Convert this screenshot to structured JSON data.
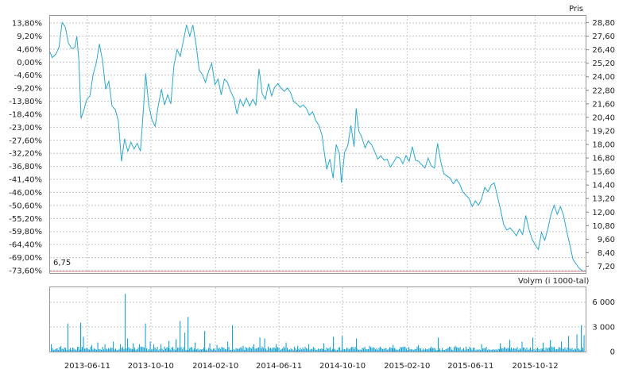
{
  "chart_data": [
    {
      "type": "line",
      "title": "",
      "right_axis_label": "Pris",
      "left_ticks": [
        "13,80%",
        "9,20%",
        "4,60%",
        "0,00%",
        "-4,60%",
        "-9,20%",
        "-13,80%",
        "-18,40%",
        "-23,00%",
        "-27,60%",
        "-32,20%",
        "-36,80%",
        "-41,40%",
        "-46,00%",
        "-50,60%",
        "-55,20%",
        "-59,80%",
        "-64,40%",
        "-69,00%",
        "-73,60%"
      ],
      "right_ticks": [
        "28,80",
        "27,60",
        "26,40",
        "25,20",
        "24,00",
        "22,80",
        "21,60",
        "20,40",
        "19,20",
        "18,00",
        "16,80",
        "15,60",
        "14,40",
        "13,20",
        "12,00",
        "10,80",
        "9,60",
        "8,40",
        "7,20"
      ],
      "left_range": [
        -73.6,
        13.8
      ],
      "right_range": [
        6.6,
        29.4
      ],
      "last_price_label": "6,75",
      "grid": true,
      "series": [
        {
          "color": "#2aa8cf",
          "points": [
            [
              "2013-04-01",
              26.2
            ],
            [
              "2013-04-05",
              25.7
            ],
            [
              "2013-04-12",
              26.0
            ],
            [
              "2013-04-18",
              26.6
            ],
            [
              "2013-04-24",
              28.8
            ],
            [
              "2013-04-30",
              28.4
            ],
            [
              "2013-05-06",
              27.0
            ],
            [
              "2013-05-12",
              26.5
            ],
            [
              "2013-05-18",
              26.6
            ],
            [
              "2013-05-22",
              27.6
            ],
            [
              "2013-05-26",
              25.4
            ],
            [
              "2013-05-30",
              20.3
            ],
            [
              "2013-06-04",
              21.0
            ],
            [
              "2013-06-10",
              22.0
            ],
            [
              "2013-06-16",
              22.3
            ],
            [
              "2013-06-22",
              24.2
            ],
            [
              "2013-06-28",
              25.2
            ],
            [
              "2013-07-04",
              26.9
            ],
            [
              "2013-07-10",
              25.4
            ],
            [
              "2013-07-16",
              22.9
            ],
            [
              "2013-07-22",
              23.6
            ],
            [
              "2013-07-28",
              21.4
            ],
            [
              "2013-08-03",
              21.1
            ],
            [
              "2013-08-09",
              20.1
            ],
            [
              "2013-08-15",
              16.5
            ],
            [
              "2013-08-21",
              18.5
            ],
            [
              "2013-08-27",
              17.4
            ],
            [
              "2013-09-02",
              18.2
            ],
            [
              "2013-09-08",
              17.6
            ],
            [
              "2013-09-14",
              18.1
            ],
            [
              "2013-09-20",
              17.4
            ],
            [
              "2013-09-26",
              21.2
            ],
            [
              "2013-09-30",
              24.3
            ],
            [
              "2013-10-06",
              21.5
            ],
            [
              "2013-10-12",
              20.2
            ],
            [
              "2013-10-18",
              19.6
            ],
            [
              "2013-10-24",
              21.4
            ],
            [
              "2013-10-30",
              22.9
            ],
            [
              "2013-11-05",
              21.5
            ],
            [
              "2013-11-11",
              22.4
            ],
            [
              "2013-11-17",
              21.6
            ],
            [
              "2013-11-23",
              25.0
            ],
            [
              "2013-11-29",
              26.4
            ],
            [
              "2013-12-05",
              25.8
            ],
            [
              "2013-12-11",
              27.2
            ],
            [
              "2013-12-17",
              28.6
            ],
            [
              "2013-12-23",
              27.6
            ],
            [
              "2013-12-29",
              28.6
            ],
            [
              "2014-01-04",
              26.9
            ],
            [
              "2014-01-10",
              24.6
            ],
            [
              "2014-01-16",
              24.2
            ],
            [
              "2014-01-22",
              23.5
            ],
            [
              "2014-01-28",
              24.5
            ],
            [
              "2014-02-03",
              25.2
            ],
            [
              "2014-02-09",
              23.3
            ],
            [
              "2014-02-15",
              23.8
            ],
            [
              "2014-02-21",
              22.4
            ],
            [
              "2014-02-27",
              23.8
            ],
            [
              "2014-03-05",
              23.5
            ],
            [
              "2014-03-11",
              22.7
            ],
            [
              "2014-03-17",
              22.1
            ],
            [
              "2014-03-23",
              20.7
            ],
            [
              "2014-03-29",
              22.0
            ],
            [
              "2014-04-04",
              21.4
            ],
            [
              "2014-04-10",
              22.1
            ],
            [
              "2014-04-16",
              21.4
            ],
            [
              "2014-04-22",
              22.0
            ],
            [
              "2014-04-28",
              21.5
            ],
            [
              "2014-05-04",
              24.7
            ],
            [
              "2014-05-10",
              22.5
            ],
            [
              "2014-05-16",
              22.0
            ],
            [
              "2014-05-22",
              23.4
            ],
            [
              "2014-05-28",
              22.3
            ],
            [
              "2014-06-03",
              23.1
            ],
            [
              "2014-06-09",
              23.4
            ],
            [
              "2014-06-15",
              23.0
            ],
            [
              "2014-06-21",
              22.7
            ],
            [
              "2014-06-27",
              23.0
            ],
            [
              "2014-07-03",
              22.6
            ],
            [
              "2014-07-09",
              21.8
            ],
            [
              "2014-07-15",
              21.6
            ],
            [
              "2014-07-21",
              21.3
            ],
            [
              "2014-07-27",
              21.5
            ],
            [
              "2014-08-02",
              21.2
            ],
            [
              "2014-08-08",
              20.6
            ],
            [
              "2014-08-14",
              20.9
            ],
            [
              "2014-08-20",
              20.1
            ],
            [
              "2014-08-26",
              19.7
            ],
            [
              "2014-09-01",
              18.8
            ],
            [
              "2014-09-05",
              17.4
            ],
            [
              "2014-09-10",
              15.8
            ],
            [
              "2014-09-16",
              16.7
            ],
            [
              "2014-09-22",
              15.0
            ],
            [
              "2014-09-28",
              18.0
            ],
            [
              "2014-10-04",
              17.2
            ],
            [
              "2014-10-08",
              14.6
            ],
            [
              "2014-10-14",
              17.3
            ],
            [
              "2014-10-20",
              17.9
            ],
            [
              "2014-10-26",
              19.7
            ],
            [
              "2014-11-01",
              17.8
            ],
            [
              "2014-11-05",
              21.2
            ],
            [
              "2014-11-10",
              19.2
            ],
            [
              "2014-11-16",
              18.6
            ],
            [
              "2014-11-22",
              17.7
            ],
            [
              "2014-11-28",
              18.3
            ],
            [
              "2014-12-04",
              18.0
            ],
            [
              "2014-12-10",
              17.4
            ],
            [
              "2014-12-16",
              16.7
            ],
            [
              "2014-12-22",
              17.0
            ],
            [
              "2014-12-28",
              16.6
            ],
            [
              "2015-01-03",
              16.7
            ],
            [
              "2015-01-09",
              16.0
            ],
            [
              "2015-01-15",
              16.4
            ],
            [
              "2015-01-21",
              16.9
            ],
            [
              "2015-01-27",
              16.8
            ],
            [
              "2015-02-02",
              16.3
            ],
            [
              "2015-02-08",
              17.0
            ],
            [
              "2015-02-14",
              16.5
            ],
            [
              "2015-02-20",
              17.8
            ],
            [
              "2015-02-26",
              16.6
            ],
            [
              "2015-03-04",
              16.5
            ],
            [
              "2015-03-10",
              16.2
            ],
            [
              "2015-03-16",
              15.9
            ],
            [
              "2015-03-22",
              16.8
            ],
            [
              "2015-03-28",
              16.1
            ],
            [
              "2015-04-03",
              15.9
            ],
            [
              "2015-04-09",
              18.1
            ],
            [
              "2015-04-15",
              16.5
            ],
            [
              "2015-04-21",
              15.4
            ],
            [
              "2015-04-27",
              15.2
            ],
            [
              "2015-05-03",
              15.0
            ],
            [
              "2015-05-09",
              14.5
            ],
            [
              "2015-05-15",
              14.9
            ],
            [
              "2015-05-21",
              14.5
            ],
            [
              "2015-05-27",
              13.8
            ],
            [
              "2015-06-02",
              13.5
            ],
            [
              "2015-06-08",
              13.2
            ],
            [
              "2015-06-14",
              12.5
            ],
            [
              "2015-06-20",
              13.0
            ],
            [
              "2015-06-26",
              12.6
            ],
            [
              "2015-07-02",
              13.2
            ],
            [
              "2015-07-08",
              14.2
            ],
            [
              "2015-07-14",
              13.8
            ],
            [
              "2015-07-20",
              14.4
            ],
            [
              "2015-07-26",
              14.6
            ],
            [
              "2015-08-01",
              13.4
            ],
            [
              "2015-08-07",
              12.2
            ],
            [
              "2015-08-13",
              10.9
            ],
            [
              "2015-08-19",
              10.4
            ],
            [
              "2015-08-25",
              10.6
            ],
            [
              "2015-08-31",
              10.3
            ],
            [
              "2015-09-06",
              9.9
            ],
            [
              "2015-09-12",
              10.5
            ],
            [
              "2015-09-18",
              10.0
            ],
            [
              "2015-09-24",
              11.7
            ],
            [
              "2015-09-30",
              10.5
            ],
            [
              "2015-10-06",
              9.6
            ],
            [
              "2015-10-12",
              9.1
            ],
            [
              "2015-10-18",
              8.7
            ],
            [
              "2015-10-24",
              10.2
            ],
            [
              "2015-10-30",
              9.5
            ],
            [
              "2015-11-05",
              10.5
            ],
            [
              "2015-11-11",
              11.8
            ],
            [
              "2015-11-17",
              12.6
            ],
            [
              "2015-11-23",
              11.8
            ],
            [
              "2015-11-29",
              12.5
            ],
            [
              "2015-12-05",
              11.7
            ],
            [
              "2015-12-11",
              10.3
            ],
            [
              "2015-12-17",
              9.1
            ],
            [
              "2015-12-23",
              7.8
            ],
            [
              "2015-12-29",
              7.4
            ],
            [
              "2016-01-04",
              7.0
            ],
            [
              "2016-01-10",
              6.8
            ],
            [
              "2016-01-16",
              6.75
            ]
          ]
        }
      ]
    },
    {
      "type": "bar",
      "title": "",
      "ylabel": "Volym (i 1000-tal)",
      "y_ticks": [
        "6 000",
        "3 000",
        "0"
      ],
      "ylim": [
        0,
        7800
      ],
      "x_ticks": [
        "2013-06-11",
        "2013-10-10",
        "2014-02-10",
        "2014-06-11",
        "2014-10-10",
        "2015-02-10",
        "2015-06-11",
        "2015-10-12"
      ],
      "x_range": [
        "2013-04-01",
        "2016-01-16"
      ],
      "grid": true,
      "baseline_volume": 380,
      "spikes": [
        [
          "2013-04-03",
          900
        ],
        [
          "2013-04-20",
          650
        ],
        [
          "2013-05-04",
          3400
        ],
        [
          "2013-05-13",
          500
        ],
        [
          "2013-05-28",
          3500
        ],
        [
          "2013-06-04",
          1800
        ],
        [
          "2013-06-18",
          800
        ],
        [
          "2013-07-01",
          1100
        ],
        [
          "2013-07-15",
          900
        ],
        [
          "2013-07-29",
          1200
        ],
        [
          "2013-08-12",
          900
        ],
        [
          "2013-08-22",
          7000
        ],
        [
          "2013-08-26",
          1600
        ],
        [
          "2013-09-05",
          1000
        ],
        [
          "2013-09-18",
          900
        ],
        [
          "2013-09-30",
          3400
        ],
        [
          "2013-10-08",
          1200
        ],
        [
          "2013-10-15",
          900
        ],
        [
          "2013-10-29",
          900
        ],
        [
          "2013-11-13",
          1300
        ],
        [
          "2013-11-26",
          1500
        ],
        [
          "2013-12-04",
          3700
        ],
        [
          "2013-12-12",
          2300
        ],
        [
          "2013-12-19",
          4200
        ],
        [
          "2014-01-02",
          1100
        ],
        [
          "2014-01-20",
          2500
        ],
        [
          "2014-01-30",
          1000
        ],
        [
          "2014-02-13",
          800
        ],
        [
          "2014-03-04",
          1200
        ],
        [
          "2014-03-14",
          3200
        ],
        [
          "2014-04-03",
          700
        ],
        [
          "2014-04-24",
          900
        ],
        [
          "2014-05-06",
          1700
        ],
        [
          "2014-05-14",
          1600
        ],
        [
          "2014-06-05",
          900
        ],
        [
          "2014-06-25",
          1100
        ],
        [
          "2014-07-16",
          700
        ],
        [
          "2014-08-06",
          900
        ],
        [
          "2014-09-04",
          1000
        ],
        [
          "2014-09-22",
          1800
        ],
        [
          "2014-10-08",
          1900
        ],
        [
          "2014-11-05",
          1600
        ],
        [
          "2014-12-01",
          700
        ],
        [
          "2015-01-14",
          800
        ],
        [
          "2015-02-03",
          600
        ],
        [
          "2015-03-02",
          800
        ],
        [
          "2015-03-27",
          600
        ],
        [
          "2015-04-09",
          1700
        ],
        [
          "2015-05-13",
          700
        ],
        [
          "2015-06-02",
          600
        ],
        [
          "2015-07-02",
          900
        ],
        [
          "2015-08-05",
          1000
        ],
        [
          "2015-08-24",
          1400
        ],
        [
          "2015-09-17",
          1200
        ],
        [
          "2015-10-06",
          1700
        ],
        [
          "2015-10-27",
          1100
        ],
        [
          "2015-11-09",
          1400
        ],
        [
          "2015-11-30",
          1200
        ],
        [
          "2015-12-14",
          1900
        ],
        [
          "2015-12-31",
          2100
        ],
        [
          "2016-01-07",
          3200
        ],
        [
          "2016-01-13",
          2000
        ]
      ]
    }
  ]
}
